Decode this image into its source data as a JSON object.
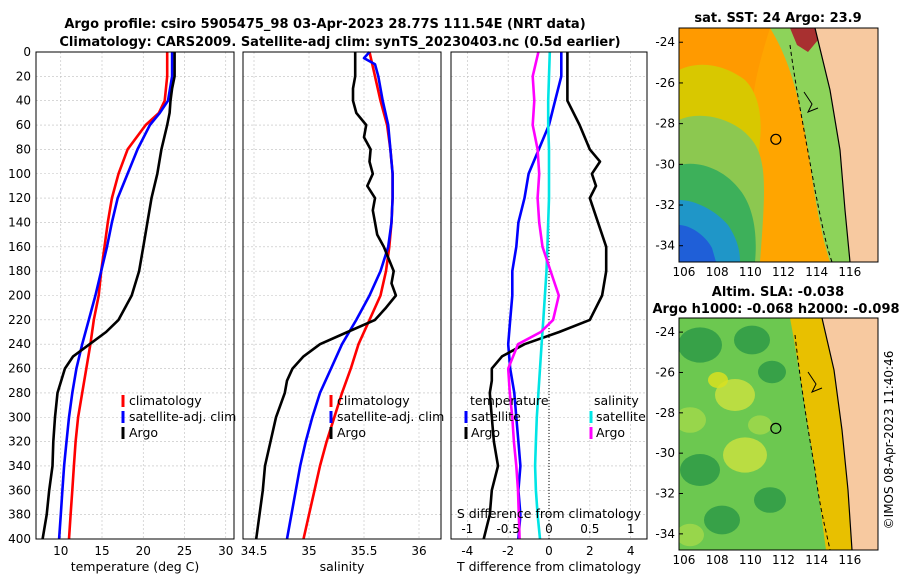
{
  "header": {
    "line1": "Argo profile: csiro 5905475_98 03-Apr-2023 28.77S 111.54E (NRT data)",
    "line2": "Climatology: CARS2009. Satellite-adj clim: synTS_20230403.nc (0.5d earlier)"
  },
  "watermark": "©IMOS 08-Apr-2023 11:40:46",
  "colors": {
    "climatology": "#ff0000",
    "satellite": "#0000ff",
    "argo": "#000000",
    "sal_sat": "#00e5e5",
    "sal_argo": "#ff00ff",
    "grid": "#bfbfbf"
  },
  "depth_ticks": [
    "0",
    "20",
    "40",
    "60",
    "80",
    "100",
    "120",
    "140",
    "160",
    "180",
    "200",
    "220",
    "240",
    "260",
    "280",
    "300",
    "320",
    "340",
    "360",
    "380",
    "400"
  ],
  "chart_data": [
    {
      "type": "line",
      "id": "temperature",
      "xlabel": "temperature (deg C)",
      "ylabel": "depth",
      "xlim": [
        7,
        31
      ],
      "ylim": [
        0,
        400
      ],
      "xticks": [
        "10",
        "15",
        "20",
        "25",
        "30"
      ],
      "xtick_values": [
        10,
        15,
        20,
        25,
        30
      ],
      "legend": [
        "climatology",
        "satellite-adj. clim",
        "Argo"
      ],
      "series": [
        {
          "name": "climatology",
          "color": "#ff0000",
          "depth": [
            0,
            20,
            40,
            50,
            60,
            80,
            100,
            120,
            140,
            160,
            180,
            200,
            220,
            240,
            260,
            280,
            300,
            320,
            340,
            360,
            380,
            400
          ],
          "values": [
            22.9,
            22.9,
            22.6,
            21.9,
            20.3,
            18.1,
            17.0,
            16.2,
            15.7,
            15.3,
            14.9,
            14.6,
            14.0,
            13.6,
            13.1,
            12.6,
            12.1,
            11.8,
            11.6,
            11.4,
            11.2,
            11.0
          ]
        },
        {
          "name": "satellite-adj. clim",
          "color": "#0000ff",
          "depth": [
            0,
            20,
            40,
            50,
            60,
            80,
            100,
            120,
            140,
            160,
            180,
            200,
            220,
            240,
            260,
            280,
            300,
            320,
            340,
            360,
            380,
            400
          ],
          "values": [
            23.5,
            23.5,
            23.0,
            22.0,
            20.8,
            19.3,
            18.1,
            16.9,
            16.2,
            15.6,
            14.9,
            14.2,
            13.4,
            12.6,
            11.9,
            11.4,
            11.0,
            10.7,
            10.4,
            10.2,
            10.0,
            9.8
          ]
        },
        {
          "name": "Argo",
          "color": "#000000",
          "depth": [
            0,
            20,
            30,
            40,
            50,
            60,
            80,
            100,
            120,
            140,
            160,
            180,
            200,
            220,
            230,
            240,
            250,
            260,
            280,
            300,
            320,
            340,
            360,
            380,
            400
          ],
          "values": [
            23.8,
            23.8,
            23.5,
            23.3,
            23.2,
            22.9,
            22.2,
            21.7,
            21.0,
            20.5,
            20.0,
            19.5,
            18.6,
            17.0,
            15.5,
            13.5,
            11.5,
            10.5,
            9.6,
            9.3,
            9.1,
            9.0,
            8.6,
            8.3,
            7.8
          ]
        }
      ]
    },
    {
      "type": "line",
      "id": "salinity",
      "xlabel": "salinity",
      "ylabel": "depth",
      "xlim": [
        34.4,
        36.2
      ],
      "ylim": [
        0,
        400
      ],
      "xticks": [
        "34.5",
        "35",
        "35.5",
        "36"
      ],
      "xtick_values": [
        34.5,
        35,
        35.5,
        36
      ],
      "legend": [
        "climatology",
        "satellite-adj. clim",
        "Argo"
      ],
      "series": [
        {
          "name": "climatology",
          "color": "#ff0000",
          "depth": [
            0,
            20,
            40,
            60,
            80,
            100,
            120,
            140,
            160,
            180,
            200,
            220,
            240,
            260,
            280,
            300,
            320,
            340,
            360,
            380,
            400
          ],
          "values": [
            35.55,
            35.6,
            35.65,
            35.71,
            35.74,
            35.76,
            35.76,
            35.75,
            35.73,
            35.7,
            35.65,
            35.55,
            35.45,
            35.38,
            35.3,
            35.23,
            35.16,
            35.1,
            35.05,
            35.0,
            34.95
          ]
        },
        {
          "name": "satellite-adj. clim",
          "color": "#0000ff",
          "depth": [
            0,
            5,
            10,
            20,
            40,
            60,
            80,
            100,
            120,
            140,
            160,
            180,
            200,
            220,
            240,
            260,
            280,
            300,
            320,
            340,
            360,
            380,
            400
          ],
          "values": [
            35.55,
            35.5,
            35.6,
            35.63,
            35.67,
            35.72,
            35.74,
            35.76,
            35.76,
            35.75,
            35.72,
            35.65,
            35.55,
            35.43,
            35.3,
            35.2,
            35.1,
            35.03,
            34.97,
            34.92,
            34.88,
            34.84,
            34.8
          ]
        },
        {
          "name": "Argo",
          "color": "#000000",
          "depth": [
            0,
            20,
            30,
            40,
            50,
            60,
            70,
            80,
            90,
            100,
            110,
            120,
            130,
            140,
            150,
            160,
            180,
            190,
            200,
            210,
            220,
            230,
            240,
            250,
            260,
            270,
            280,
            300,
            320,
            340,
            360,
            380,
            400
          ],
          "values": [
            35.42,
            35.42,
            35.4,
            35.4,
            35.43,
            35.52,
            35.5,
            35.56,
            35.55,
            35.58,
            35.53,
            35.6,
            35.58,
            35.6,
            35.62,
            35.68,
            35.77,
            35.75,
            35.79,
            35.7,
            35.6,
            35.35,
            35.1,
            34.95,
            34.85,
            34.8,
            34.78,
            34.7,
            34.65,
            34.6,
            34.58,
            34.55,
            34.52
          ]
        }
      ]
    },
    {
      "type": "line",
      "id": "difference",
      "xlabel": "T difference from climatology",
      "ylabel": "depth",
      "xlim": [
        -4.8,
        4.8
      ],
      "ylim": [
        0,
        400
      ],
      "xticks": [
        "-4",
        "-2",
        "0",
        "2",
        "4"
      ],
      "xtick_values": [
        -4,
        -2,
        0,
        2,
        4
      ],
      "top_xlabel": "S difference from climatology",
      "top_xticks": [
        "-1",
        "-0.5",
        "0",
        "0.5",
        "1"
      ],
      "top_xtick_values": [
        -1,
        -0.5,
        0,
        0.5,
        1
      ],
      "legend_title_t": "temperature",
      "legend_title_s": "salinity",
      "legend_t": [
        "satellite",
        "Argo"
      ],
      "legend_s": [
        "satellite",
        "Argo"
      ],
      "series": [
        {
          "name": "T satellite",
          "color": "#0000ff",
          "depth": [
            0,
            20,
            40,
            60,
            80,
            100,
            120,
            140,
            160,
            180,
            200,
            220,
            240,
            260,
            280,
            300,
            320,
            340,
            360,
            380,
            400
          ],
          "values": [
            0.6,
            0.6,
            0.3,
            0.0,
            -0.5,
            -1.0,
            -1.2,
            -1.5,
            -1.6,
            -1.8,
            -1.8,
            -1.9,
            -2.0,
            -1.9,
            -1.7,
            -1.6,
            -1.5,
            -1.4,
            -1.5,
            -1.4,
            -1.5
          ]
        },
        {
          "name": "T Argo",
          "color": "#000000",
          "depth": [
            0,
            20,
            40,
            60,
            80,
            90,
            100,
            110,
            120,
            140,
            160,
            180,
            200,
            220,
            230,
            240,
            250,
            260,
            270,
            280,
            300,
            320,
            340,
            360,
            380,
            400
          ],
          "values": [
            0.9,
            0.9,
            0.9,
            1.5,
            2.0,
            2.5,
            2.1,
            2.3,
            2.0,
            2.4,
            2.8,
            2.8,
            2.6,
            2.0,
            0.5,
            -1.2,
            -2.3,
            -2.8,
            -2.8,
            -2.9,
            -2.8,
            -2.7,
            -2.5,
            -2.8,
            -2.9,
            -3.2
          ]
        },
        {
          "name": "S satellite",
          "color": "#00e5e5",
          "depth": [
            0,
            20,
            40,
            60,
            80,
            100,
            120,
            140,
            160,
            180,
            200,
            220,
            240,
            260,
            280,
            300,
            320,
            340,
            360,
            380,
            400
          ],
          "values": [
            0.01,
            0.0,
            -0.01,
            -0.01,
            0.0,
            0.0,
            0.0,
            -0.01,
            -0.02,
            -0.03,
            -0.05,
            -0.07,
            -0.09,
            -0.11,
            -0.13,
            -0.15,
            -0.16,
            -0.17,
            -0.16,
            -0.14,
            -0.11
          ]
        },
        {
          "name": "S Argo",
          "color": "#ff00ff",
          "depth": [
            0,
            20,
            40,
            60,
            80,
            100,
            120,
            140,
            160,
            180,
            200,
            220,
            230,
            240,
            260,
            280,
            300,
            320,
            340,
            360,
            380,
            400
          ],
          "values": [
            -0.13,
            -0.2,
            -0.18,
            -0.2,
            -0.14,
            -0.12,
            -0.14,
            -0.12,
            -0.08,
            0.02,
            0.12,
            0.05,
            -0.1,
            -0.38,
            -0.5,
            -0.48,
            -0.45,
            -0.43,
            -0.4,
            -0.38,
            -0.37,
            -0.36
          ]
        }
      ]
    },
    {
      "type": "heatmap",
      "id": "sst-map",
      "title": "sat. SST: 24 Argo: 23.9",
      "xticks": [
        "106",
        "108",
        "110",
        "112",
        "114",
        "116"
      ],
      "xtick_values": [
        106,
        108,
        110,
        112,
        114,
        116
      ],
      "yticks": [
        "-24",
        "-26",
        "-28",
        "-30",
        "-32",
        "-34"
      ],
      "ytick_values": [
        -24,
        -26,
        -28,
        -30,
        -32,
        -34
      ],
      "xlim": [
        105.7,
        117.7
      ],
      "ylim": [
        -34.8,
        -23.3
      ],
      "argo_lon": 111.54,
      "argo_lat": -28.77
    },
    {
      "type": "heatmap",
      "id": "sla-map",
      "title": "Altim. SLA: -0.038",
      "subtitle": "Argo h1000: -0.068 h2000: -0.098",
      "xticks": [
        "106",
        "108",
        "110",
        "112",
        "114",
        "116"
      ],
      "xtick_values": [
        106,
        108,
        110,
        112,
        114,
        116
      ],
      "yticks": [
        "-24",
        "-26",
        "-28",
        "-30",
        "-32",
        "-34"
      ],
      "ytick_values": [
        -24,
        -26,
        -28,
        -30,
        -32,
        -34
      ],
      "xlim": [
        105.7,
        117.7
      ],
      "ylim": [
        -34.8,
        -23.3
      ],
      "argo_lon": 111.54,
      "argo_lat": -28.77
    }
  ]
}
